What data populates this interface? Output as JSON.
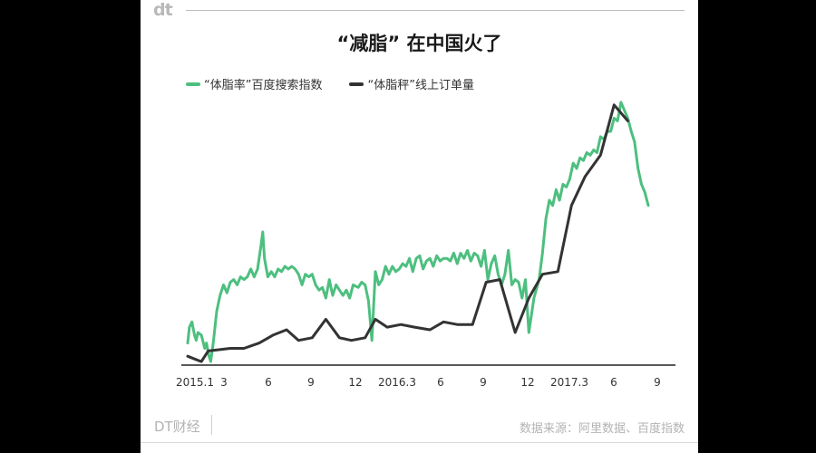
{
  "brand": {
    "logo": "dt",
    "footer_brand": "DT财经"
  },
  "source": "数据来源：阿里数据、百度指数",
  "chart_data": {
    "type": "line",
    "title": "“减脂” 在中国火了",
    "xlabel": "",
    "ylabel": "",
    "x_ticks": [
      "2015.1",
      "3",
      "6",
      "9",
      "12",
      "2016.3",
      "6",
      "9",
      "12",
      "2017.3",
      "6",
      "9"
    ],
    "x_range": [
      2015.0,
      2017.833
    ],
    "y_range": [
      0,
      100
    ],
    "grid": false,
    "legend_position": "top-left",
    "series": [
      {
        "name": "“体脂率”百度搜索指数",
        "color": "#4dbf7f",
        "points": [
          [
            2015.0,
            8
          ],
          [
            2015.01,
            14
          ],
          [
            2015.025,
            16
          ],
          [
            2015.04,
            11
          ],
          [
            2015.05,
            9
          ],
          [
            2015.06,
            12
          ],
          [
            2015.08,
            11
          ],
          [
            2015.1,
            6
          ],
          [
            2015.11,
            8
          ],
          [
            2015.125,
            3
          ],
          [
            2015.135,
            1
          ],
          [
            2015.15,
            8
          ],
          [
            2015.17,
            20
          ],
          [
            2015.19,
            26
          ],
          [
            2015.21,
            30
          ],
          [
            2015.23,
            27
          ],
          [
            2015.25,
            31
          ],
          [
            2015.27,
            32
          ],
          [
            2015.29,
            30
          ],
          [
            2015.31,
            33
          ],
          [
            2015.33,
            32
          ],
          [
            2015.35,
            33
          ],
          [
            2015.37,
            36
          ],
          [
            2015.39,
            33
          ],
          [
            2015.41,
            36
          ],
          [
            2015.43,
            45
          ],
          [
            2015.44,
            50
          ],
          [
            2015.45,
            40
          ],
          [
            2015.47,
            33
          ],
          [
            2015.49,
            35
          ],
          [
            2015.51,
            33
          ],
          [
            2015.53,
            36
          ],
          [
            2015.55,
            35
          ],
          [
            2015.57,
            37
          ],
          [
            2015.59,
            36
          ],
          [
            2015.61,
            37
          ],
          [
            2015.63,
            36
          ],
          [
            2015.65,
            34
          ],
          [
            2015.67,
            30
          ],
          [
            2015.69,
            34
          ],
          [
            2015.71,
            33
          ],
          [
            2015.73,
            34
          ],
          [
            2015.75,
            30
          ],
          [
            2015.77,
            28
          ],
          [
            2015.79,
            29
          ],
          [
            2015.81,
            25
          ],
          [
            2015.83,
            32
          ],
          [
            2015.85,
            26
          ],
          [
            2015.87,
            30
          ],
          [
            2015.89,
            28
          ],
          [
            2015.91,
            26
          ],
          [
            2015.93,
            28
          ],
          [
            2015.95,
            25
          ],
          [
            2015.97,
            30
          ],
          [
            2016.0,
            29
          ],
          [
            2016.02,
            31
          ],
          [
            2016.04,
            30
          ],
          [
            2016.06,
            24
          ],
          [
            2016.08,
            9
          ],
          [
            2016.1,
            35
          ],
          [
            2016.12,
            30
          ],
          [
            2016.14,
            32
          ],
          [
            2016.16,
            37
          ],
          [
            2016.18,
            34
          ],
          [
            2016.2,
            37
          ],
          [
            2016.22,
            35
          ],
          [
            2016.24,
            36
          ],
          [
            2016.26,
            38
          ],
          [
            2016.28,
            37
          ],
          [
            2016.3,
            40
          ],
          [
            2016.32,
            35
          ],
          [
            2016.34,
            40
          ],
          [
            2016.36,
            41
          ],
          [
            2016.38,
            36
          ],
          [
            2016.4,
            39
          ],
          [
            2016.42,
            40
          ],
          [
            2016.44,
            37
          ],
          [
            2016.46,
            41
          ],
          [
            2016.48,
            39
          ],
          [
            2016.5,
            40
          ],
          [
            2016.52,
            40
          ],
          [
            2016.54,
            39
          ],
          [
            2016.56,
            42
          ],
          [
            2016.58,
            38
          ],
          [
            2016.6,
            42
          ],
          [
            2016.62,
            40
          ],
          [
            2016.64,
            43
          ],
          [
            2016.66,
            39
          ],
          [
            2016.68,
            42
          ],
          [
            2016.7,
            41
          ],
          [
            2016.72,
            37
          ],
          [
            2016.74,
            43
          ],
          [
            2016.76,
            32
          ],
          [
            2016.78,
            38
          ],
          [
            2016.8,
            41
          ],
          [
            2016.82,
            34
          ],
          [
            2016.84,
            30
          ],
          [
            2016.86,
            34
          ],
          [
            2016.88,
            43
          ],
          [
            2016.9,
            30
          ],
          [
            2016.92,
            32
          ],
          [
            2016.94,
            31
          ],
          [
            2016.96,
            25
          ],
          [
            2016.98,
            32
          ],
          [
            2017.0,
            12
          ],
          [
            2017.03,
            25
          ],
          [
            2017.06,
            32
          ],
          [
            2017.08,
            42
          ],
          [
            2017.1,
            55
          ],
          [
            2017.12,
            62
          ],
          [
            2017.14,
            60
          ],
          [
            2017.16,
            66
          ],
          [
            2017.18,
            62
          ],
          [
            2017.2,
            68
          ],
          [
            2017.22,
            67
          ],
          [
            2017.24,
            70
          ],
          [
            2017.26,
            76
          ],
          [
            2017.28,
            74
          ],
          [
            2017.3,
            78
          ],
          [
            2017.32,
            77
          ],
          [
            2017.34,
            80
          ],
          [
            2017.36,
            79
          ],
          [
            2017.38,
            81
          ],
          [
            2017.4,
            80
          ],
          [
            2017.42,
            86
          ],
          [
            2017.44,
            85
          ],
          [
            2017.46,
            88
          ],
          [
            2017.48,
            88
          ],
          [
            2017.5,
            93
          ],
          [
            2017.52,
            92
          ],
          [
            2017.54,
            99
          ],
          [
            2017.56,
            96
          ],
          [
            2017.58,
            93
          ],
          [
            2017.6,
            88
          ],
          [
            2017.62,
            84
          ],
          [
            2017.64,
            74
          ],
          [
            2017.66,
            68
          ],
          [
            2017.68,
            65
          ],
          [
            2017.7,
            60
          ]
        ]
      },
      {
        "name": "“体脂秤”线上订单量",
        "color": "#333333",
        "points": [
          [
            2015.0,
            3
          ],
          [
            2015.04,
            2
          ],
          [
            2015.08,
            1
          ],
          [
            2015.12,
            5
          ],
          [
            2015.25,
            6
          ],
          [
            2015.33,
            6
          ],
          [
            2015.42,
            8
          ],
          [
            2015.5,
            11
          ],
          [
            2015.58,
            13
          ],
          [
            2015.65,
            9
          ],
          [
            2015.73,
            10
          ],
          [
            2015.81,
            17
          ],
          [
            2015.89,
            10
          ],
          [
            2015.96,
            9
          ],
          [
            2016.04,
            10
          ],
          [
            2016.1,
            17
          ],
          [
            2016.17,
            14
          ],
          [
            2016.25,
            15
          ],
          [
            2016.33,
            14
          ],
          [
            2016.42,
            13
          ],
          [
            2016.5,
            16
          ],
          [
            2016.58,
            15
          ],
          [
            2016.67,
            15
          ],
          [
            2016.75,
            31
          ],
          [
            2016.83,
            32
          ],
          [
            2016.92,
            12
          ],
          [
            2017.0,
            25
          ],
          [
            2017.08,
            34
          ],
          [
            2017.17,
            35
          ],
          [
            2017.25,
            60
          ],
          [
            2017.33,
            71
          ],
          [
            2017.42,
            79
          ],
          [
            2017.5,
            98
          ],
          [
            2017.58,
            92
          ]
        ]
      }
    ]
  }
}
